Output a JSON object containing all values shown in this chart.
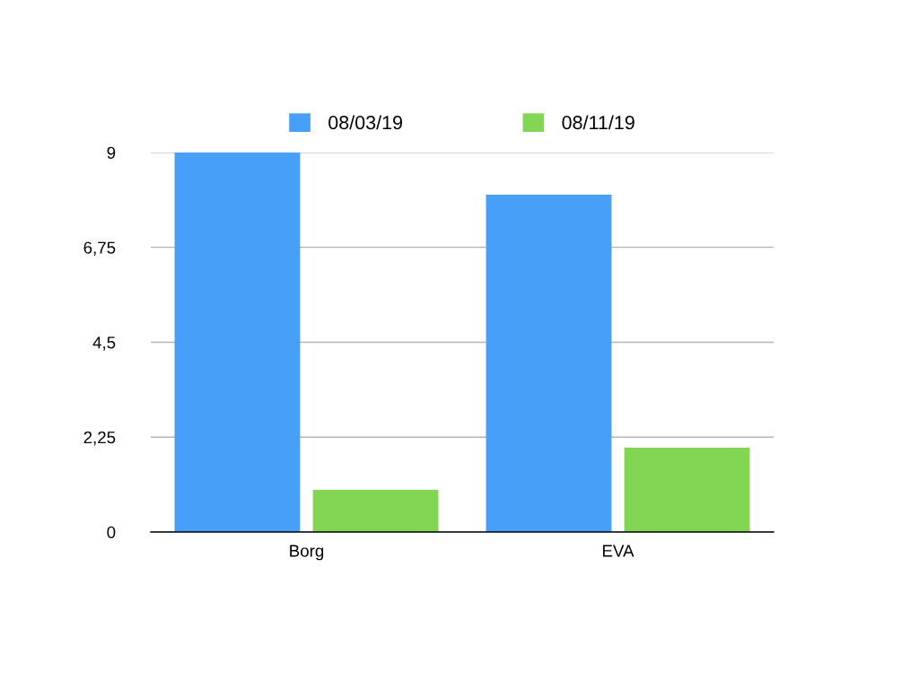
{
  "chart_data": {
    "type": "bar",
    "categories": [
      "Borg",
      "EVA"
    ],
    "series": [
      {
        "name": "08/03/19",
        "color": "#489ff7",
        "values": [
          9,
          8
        ]
      },
      {
        "name": "08/11/19",
        "color": "#83d654",
        "values": [
          1,
          2
        ]
      }
    ],
    "ylim": [
      0,
      9
    ],
    "yticks": [
      0,
      {
        "value": 2.25,
        "label": "2,25"
      },
      {
        "value": 4.5,
        "label": "4,5"
      },
      {
        "value": 6.75,
        "label": "6,75"
      },
      9
    ],
    "grid": "y",
    "legend": "top"
  }
}
